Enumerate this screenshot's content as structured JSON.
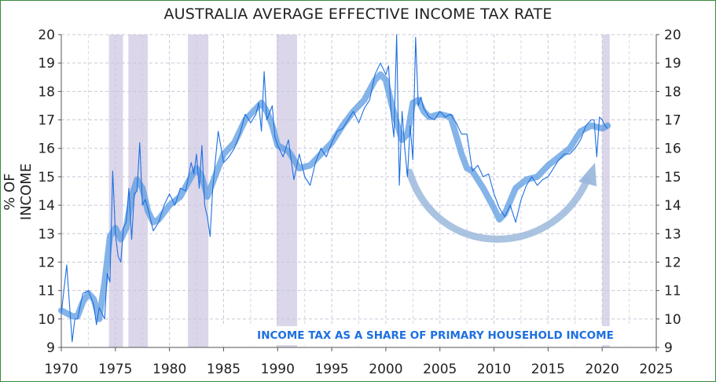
{
  "chart_data": {
    "type": "line",
    "title": "AUSTRALIA AVERAGE EFFECTIVE INCOME TAX RATE",
    "ylabel": "% OF INCOME",
    "xlabel": "",
    "xlim": [
      1970,
      2025
    ],
    "ylim": [
      9,
      20
    ],
    "x_ticks": [
      "1970",
      "1975",
      "1980",
      "1985",
      "1990",
      "1995",
      "2000",
      "2005",
      "2010",
      "2015",
      "2020",
      "2025"
    ],
    "y_ticks": [
      "9",
      "10",
      "11",
      "12",
      "13",
      "14",
      "15",
      "16",
      "17",
      "18",
      "19",
      "20"
    ],
    "grid": true,
    "right_axis": true,
    "annotation": "INCOME TAX AS A SHARE OF PRIMARY HOUSEHOLD INCOME",
    "recession_bands": [
      [
        1974.4,
        1975.7
      ],
      [
        1976.2,
        1978.0
      ],
      [
        1981.7,
        1983.6
      ],
      [
        1989.9,
        1991.8
      ],
      [
        2020.0,
        2020.7
      ]
    ],
    "colors": {
      "raw": "#1e6fe0",
      "smooth": "#5b9be0",
      "band": "#dcd6ea",
      "grid": "#c8c8d8",
      "arrow": "#9bb8dc",
      "frame": "#3a8a3a"
    },
    "series": [
      {
        "x": [
          1970.0,
          1970.5,
          1971.0,
          1971.25,
          1971.5,
          1972.0,
          1972.5,
          1973.0,
          1973.25,
          1973.5,
          1974.0,
          1974.25,
          1974.5,
          1974.75,
          1975.0,
          1975.25,
          1975.5,
          1975.75,
          1976.0,
          1976.25,
          1976.5,
          1976.75,
          1977.0,
          1977.25,
          1977.5,
          1977.75,
          1978.0,
          1978.5,
          1979.0,
          1979.5,
          1980.0,
          1980.5,
          1981.0,
          1981.5,
          1982.0,
          1982.25,
          1982.5,
          1982.75,
          1983.0,
          1983.25,
          1983.5,
          1983.75,
          1984.0,
          1984.5,
          1985.0,
          1985.5,
          1986.0,
          1986.5,
          1987.0,
          1987.5,
          1988.0,
          1988.25,
          1988.5,
          1988.75,
          1989.0,
          1989.5,
          1989.75,
          1990.0,
          1990.5,
          1991.0,
          1991.5,
          1992.0,
          1992.5,
          1993.0,
          1993.5,
          1994.0,
          1994.5,
          1995.0,
          1995.5,
          1996.0,
          1996.5,
          1997.0,
          1997.5,
          1998.0,
          1998.5,
          1999.0,
          1999.5,
          2000.0,
          2000.25,
          2000.5,
          2000.75,
          2001.0,
          2001.25,
          2001.5,
          2001.75,
          2002.0,
          2002.25,
          2002.5,
          2002.75,
          2003.0,
          2003.25,
          2003.5,
          2004.0,
          2004.5,
          2005.0,
          2005.5,
          2006.0,
          2006.5,
          2007.0,
          2007.5,
          2008.0,
          2008.5,
          2009.0,
          2009.5,
          2010.0,
          2010.5,
          2011.0,
          2011.5,
          2012.0,
          2012.5,
          2013.0,
          2013.5,
          2014.0,
          2014.5,
          2015.0,
          2015.5,
          2016.0,
          2016.5,
          2017.0,
          2017.5,
          2018.0,
          2018.5,
          2019.0,
          2019.25,
          2019.5,
          2019.75,
          2020.0,
          2020.25,
          2020.5
        ],
        "values": [
          10.2,
          11.9,
          9.2,
          10.0,
          10.0,
          10.9,
          11.0,
          10.5,
          9.8,
          10.4,
          10.0,
          11.6,
          11.3,
          15.2,
          13.0,
          12.2,
          12.0,
          13.2,
          13.4,
          14.6,
          12.8,
          14.4,
          14.5,
          16.2,
          14.0,
          14.2,
          13.9,
          13.1,
          13.4,
          14.0,
          14.4,
          14.0,
          14.6,
          14.5,
          15.5,
          15.1,
          15.8,
          14.6,
          16.1,
          14.0,
          13.6,
          12.9,
          14.6,
          16.6,
          15.5,
          15.7,
          16.0,
          16.5,
          17.2,
          16.9,
          17.2,
          17.6,
          16.6,
          18.7,
          17.0,
          17.5,
          16.4,
          16.1,
          15.7,
          16.3,
          14.9,
          15.8,
          15.0,
          14.7,
          15.5,
          16.0,
          15.7,
          16.2,
          16.6,
          16.7,
          17.0,
          17.3,
          16.9,
          17.4,
          17.7,
          18.6,
          19.0,
          18.6,
          18.9,
          17.2,
          16.4,
          20.0,
          14.7,
          17.3,
          16.0,
          15.0,
          16.8,
          15.6,
          19.9,
          17.5,
          17.8,
          17.4,
          17.1,
          17.0,
          17.3,
          17.1,
          17.2,
          16.9,
          16.5,
          16.5,
          15.2,
          15.4,
          15.0,
          15.1,
          14.4,
          13.9,
          13.6,
          14.0,
          13.4,
          14.2,
          14.7,
          15.0,
          14.7,
          14.9,
          15.0,
          15.3,
          15.6,
          15.8,
          15.8,
          16.0,
          16.3,
          16.8,
          17.0,
          17.0,
          15.7,
          17.1,
          17.0,
          16.8,
          16.7
        ]
      },
      {
        "x": [
          1970.0,
          1971.0,
          1971.5,
          1972.0,
          1972.5,
          1973.0,
          1973.5,
          1974.0,
          1974.5,
          1975.0,
          1975.5,
          1976.0,
          1976.5,
          1977.0,
          1977.5,
          1978.0,
          1978.5,
          1979.0,
          1980.0,
          1981.0,
          1982.0,
          1982.5,
          1983.0,
          1983.5,
          1984.0,
          1985.0,
          1986.0,
          1987.0,
          1988.0,
          1988.5,
          1989.0,
          1989.5,
          1990.0,
          1991.0,
          1992.0,
          1993.0,
          1994.0,
          1995.0,
          1996.0,
          1997.0,
          1998.0,
          1999.0,
          1999.5,
          2000.0,
          2000.5,
          2001.0,
          2001.5,
          2002.0,
          2002.5,
          2003.0,
          2003.5,
          2004.0,
          2005.0,
          2006.0,
          2007.0,
          2007.5,
          2008.0,
          2009.0,
          2010.0,
          2010.5,
          2011.0,
          2012.0,
          2013.0,
          2014.0,
          2015.0,
          2016.0,
          2017.0,
          2018.0,
          2019.0,
          2020.0,
          2020.5
        ],
        "values": [
          10.3,
          10.1,
          10.1,
          10.6,
          10.9,
          10.7,
          10.0,
          11.3,
          12.9,
          13.2,
          12.8,
          13.2,
          14.3,
          14.9,
          14.6,
          13.8,
          13.4,
          13.5,
          14.0,
          14.3,
          15.0,
          15.3,
          15.0,
          14.3,
          14.8,
          15.8,
          16.2,
          17.0,
          17.4,
          17.6,
          17.3,
          16.8,
          16.1,
          15.9,
          15.3,
          15.4,
          15.8,
          16.2,
          16.8,
          17.3,
          17.7,
          18.4,
          18.6,
          18.4,
          17.6,
          16.9,
          16.3,
          16.5,
          17.6,
          17.7,
          17.3,
          17.1,
          17.2,
          17.1,
          15.8,
          15.3,
          15.2,
          14.6,
          13.9,
          13.5,
          13.7,
          14.6,
          14.9,
          15.0,
          15.4,
          15.7,
          16.0,
          16.6,
          16.8,
          16.7,
          16.8
        ]
      }
    ]
  }
}
